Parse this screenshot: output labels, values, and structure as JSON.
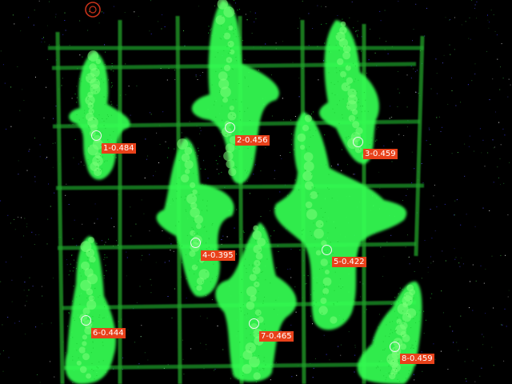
{
  "image": {
    "description_color_background": "#000000",
    "colors": {
      "plant": "#34ff52",
      "plant_dim": "#18c830",
      "grid": "#1fa02a",
      "label_bg": "#e8411a",
      "marker": "#f4f4f4",
      "top_marker": "#c8321a"
    }
  },
  "plants": [
    {
      "id": 1,
      "label": "1-0.484",
      "value": 0.484
    },
    {
      "id": 2,
      "label": "2-0.456",
      "value": 0.456
    },
    {
      "id": 3,
      "label": "3-0.459",
      "value": 0.459
    },
    {
      "id": 4,
      "label": "4-0.395",
      "value": 0.395
    },
    {
      "id": 5,
      "label": "5-0.422",
      "value": 0.422
    },
    {
      "id": 6,
      "label": "6-0.444",
      "value": 0.444
    },
    {
      "id": 7,
      "label": "7-0.465",
      "value": 0.465
    },
    {
      "id": 8,
      "label": "8-0.459",
      "value": 0.459
    }
  ]
}
